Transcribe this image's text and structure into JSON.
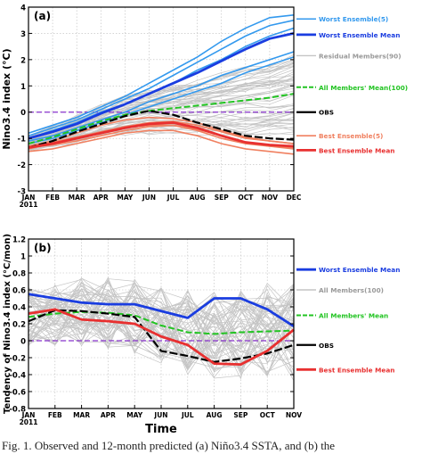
{
  "figure_caption": "Fig. 1. Observed and 12-month predicted (a) Niño3.4 SSTA, and (b) the",
  "colors": {
    "worst_ensemble": "#3399ee",
    "worst_mean": "#1a3de0",
    "residual": "#c4c4c4",
    "all_mean": "#22c422",
    "obs": "#000000",
    "best_ensemble": "#f08060",
    "best_mean": "#e83030",
    "zero_line": "#8833cc"
  },
  "chart_data": [
    {
      "type": "line",
      "panel_label": "(a)",
      "ylabel": "Nino3.4 index (°C)",
      "xlabel": "",
      "categories": [
        "JAN\n2011",
        "FEB",
        "MAR",
        "APR",
        "MAY",
        "JUN",
        "JUL",
        "AUG",
        "SEP",
        "OCT",
        "NOV",
        "DEC"
      ],
      "yticks": [
        "-3",
        "-2",
        "-1",
        "0",
        "1",
        "2",
        "3",
        "4"
      ],
      "ylim": [
        -3,
        4
      ],
      "zero_line": 0,
      "grid": true,
      "legend_position": "right",
      "legend": [
        {
          "label": "Worst Ensemble(5)",
          "key": "worst_ensemble"
        },
        {
          "label": "Worst Ensemble Mean",
          "key": "worst_mean"
        },
        {
          "label": "Residual Members(90)",
          "key": "residual"
        },
        {
          "label": "All Members' Mean(100)",
          "key": "all_mean"
        },
        {
          "label": "OBS",
          "key": "obs"
        },
        {
          "label": "Best Ensemble(5)",
          "key": "best_ensemble"
        },
        {
          "label": "Best Ensemble Mean",
          "key": "best_mean"
        }
      ],
      "series": [
        {
          "name": "Worst Ensemble Mean",
          "key": "worst_mean",
          "values": [
            -1.0,
            -0.75,
            -0.45,
            -0.05,
            0.3,
            0.7,
            1.1,
            1.5,
            1.95,
            2.4,
            2.8,
            3.0
          ]
        },
        {
          "name": "All Members' Mean(100)",
          "key": "all_mean",
          "values": [
            -1.2,
            -0.95,
            -0.65,
            -0.35,
            -0.1,
            0.05,
            0.15,
            0.25,
            0.35,
            0.45,
            0.55,
            0.7
          ]
        },
        {
          "name": "OBS",
          "key": "obs",
          "values": [
            -1.35,
            -1.1,
            -0.75,
            -0.45,
            -0.15,
            0.05,
            -0.1,
            -0.4,
            -0.65,
            -0.9,
            -1.0,
            -1.05
          ]
        },
        {
          "name": "Best Ensemble Mean",
          "key": "best_mean",
          "values": [
            -1.35,
            -1.2,
            -1.0,
            -0.8,
            -0.6,
            -0.45,
            -0.4,
            -0.6,
            -0.9,
            -1.15,
            -1.25,
            -1.3
          ]
        }
      ],
      "ensemble_worst": [
        [
          -0.8,
          -0.5,
          -0.2,
          0.2,
          0.6,
          1.1,
          1.6,
          2.1,
          2.7,
          3.2,
          3.6,
          3.7
        ],
        [
          -0.9,
          -0.6,
          -0.3,
          0.1,
          0.5,
          0.9,
          1.4,
          1.9,
          2.4,
          2.9,
          3.3,
          3.5
        ],
        [
          -1.0,
          -0.7,
          -0.4,
          0.0,
          0.3,
          0.7,
          1.1,
          1.6,
          2.0,
          2.5,
          2.9,
          3.2
        ],
        [
          -1.1,
          -0.9,
          -0.6,
          -0.3,
          0.0,
          0.4,
          0.7,
          1.0,
          1.4,
          1.7,
          2.0,
          2.3
        ],
        [
          -1.2,
          -1.0,
          -0.7,
          -0.4,
          -0.1,
          0.2,
          0.5,
          0.8,
          1.1,
          1.5,
          1.8,
          2.1
        ]
      ],
      "ensemble_best": [
        [
          -1.3,
          -1.1,
          -0.8,
          -0.5,
          -0.3,
          -0.2,
          -0.25,
          -0.4,
          -0.7,
          -0.95,
          -1.1,
          -1.2
        ],
        [
          -1.4,
          -1.2,
          -1.0,
          -0.8,
          -0.6,
          -0.5,
          -0.5,
          -0.7,
          -1.0,
          -1.2,
          -1.3,
          -1.35
        ],
        [
          -1.35,
          -1.25,
          -1.1,
          -0.9,
          -0.7,
          -0.55,
          -0.5,
          -0.65,
          -0.9,
          -1.15,
          -1.3,
          -1.4
        ],
        [
          -1.5,
          -1.4,
          -1.2,
          -1.0,
          -0.8,
          -0.7,
          -0.7,
          -0.9,
          -1.2,
          -1.4,
          -1.5,
          -1.6
        ],
        [
          -1.3,
          -1.15,
          -0.95,
          -0.75,
          -0.55,
          -0.4,
          -0.35,
          -0.5,
          -0.75,
          -1.0,
          -1.1,
          -1.2
        ]
      ]
    },
    {
      "type": "line",
      "panel_label": "(b)",
      "ylabel": "Tendency of Nino3.4 index (°C/mon)",
      "xlabel": "Time",
      "categories": [
        "JAN\n2011",
        "FEB",
        "MAR",
        "APR",
        "MAY",
        "JUN",
        "JUL",
        "AUG",
        "SEP",
        "OCT",
        "NOV"
      ],
      "yticks": [
        "-0.8",
        "-0.6",
        "-0.4",
        "-0.2",
        "0",
        "0.2",
        "0.4",
        "0.6",
        "0.8",
        "1",
        "1.2"
      ],
      "ylim": [
        -0.8,
        1.2
      ],
      "zero_line": 0,
      "grid": true,
      "legend_position": "right",
      "legend": [
        {
          "label": "Worst Ensemble Mean",
          "key": "worst_mean"
        },
        {
          "label": "All Members(100)",
          "key": "residual"
        },
        {
          "label": "All Members' Mean",
          "key": "all_mean"
        },
        {
          "label": "OBS",
          "key": "obs"
        },
        {
          "label": "Best Ensemble Mean",
          "key": "best_mean"
        }
      ],
      "series": [
        {
          "name": "Worst Ensemble Mean",
          "key": "worst_mean",
          "values": [
            0.55,
            0.5,
            0.45,
            0.43,
            0.43,
            0.35,
            0.27,
            0.5,
            0.5,
            0.37,
            0.17
          ]
        },
        {
          "name": "All Members' Mean",
          "key": "all_mean",
          "values": [
            0.28,
            0.32,
            0.34,
            0.33,
            0.3,
            0.18,
            0.1,
            0.08,
            0.1,
            0.11,
            0.12
          ]
        },
        {
          "name": "OBS",
          "key": "obs",
          "values": [
            0.23,
            0.36,
            0.35,
            0.32,
            0.28,
            -0.12,
            -0.18,
            -0.25,
            -0.21,
            -0.15,
            -0.05
          ]
        },
        {
          "name": "Best Ensemble Mean",
          "key": "best_mean",
          "values": [
            0.32,
            0.37,
            0.25,
            0.23,
            0.2,
            0.05,
            -0.05,
            -0.27,
            -0.28,
            -0.12,
            0.13
          ]
        }
      ]
    }
  ]
}
